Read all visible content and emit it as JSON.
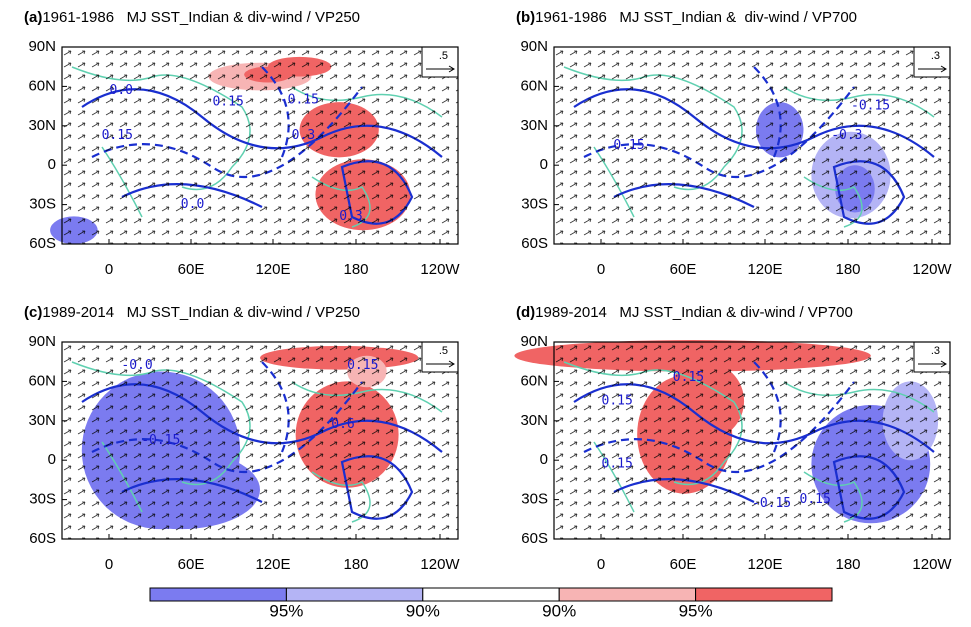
{
  "panels": [
    {
      "label": "(a)",
      "title": "1961-1986   MJ SST_Indian & div-wind / VP250",
      "ref_vector": ".5",
      "contour_labels": [
        "0.0",
        "0.15",
        "0.15",
        "-0.15",
        "0.3",
        "0.0",
        "0.3"
      ]
    },
    {
      "label": "(b)",
      "title": "1961-1986   MJ SST_Indian &  div-wind / VP700",
      "ref_vector": ".3",
      "contour_labels": [
        "-0.15",
        "0.15",
        "-0.3"
      ]
    },
    {
      "label": "(c)",
      "title": "1989-2014   MJ SST_Indian & div-wind / VP250",
      "ref_vector": ".5",
      "contour_labels": [
        "-0.0",
        "0.15",
        "0.6",
        "-0.15"
      ]
    },
    {
      "label": "(d)",
      "title": "1989-2014   MJ SST_Indian & div-wind / VP700",
      "ref_vector": ".3",
      "contour_labels": [
        "0.15",
        "0.15",
        "0.15",
        "-0.15",
        "0.15"
      ]
    }
  ],
  "lat_labels": [
    "90N",
    "60N",
    "30N",
    "0",
    "30S",
    "60S"
  ],
  "lon_labels": [
    "0",
    "60E",
    "120E",
    "180",
    "120W"
  ],
  "colorbar": {
    "labels": [
      "95%",
      "90%",
      "90%",
      "95%"
    ]
  }
}
